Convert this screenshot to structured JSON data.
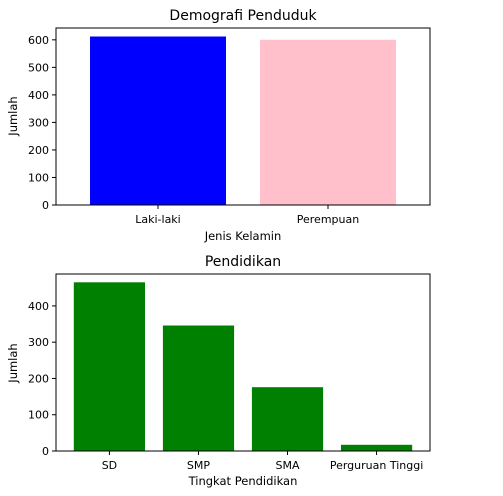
{
  "chart_data": [
    {
      "type": "bar",
      "title": "Demografi Penduduk",
      "xlabel": "Jenis Kelamin",
      "ylabel": "Jumlah",
      "categories": [
        "Laki-laki",
        "Perempuan"
      ],
      "values": [
        612,
        600
      ],
      "colors": [
        "#0000ff",
        "#ffc0cb"
      ],
      "ylim": [
        0,
        643
      ],
      "yticks": [
        0,
        100,
        200,
        300,
        400,
        500,
        600
      ],
      "grid": false
    },
    {
      "type": "bar",
      "title": "Pendidikan",
      "xlabel": "Tingkat Pendidikan",
      "ylabel": "Jumlah",
      "categories": [
        "SD",
        "SMP",
        "SMA",
        "Perguruan Tinggi"
      ],
      "values": [
        465,
        346,
        176,
        17
      ],
      "colors": [
        "#008000",
        "#008000",
        "#008000",
        "#008000"
      ],
      "ylim": [
        0,
        488
      ],
      "yticks": [
        0,
        100,
        200,
        300,
        400
      ],
      "grid": false
    }
  ]
}
